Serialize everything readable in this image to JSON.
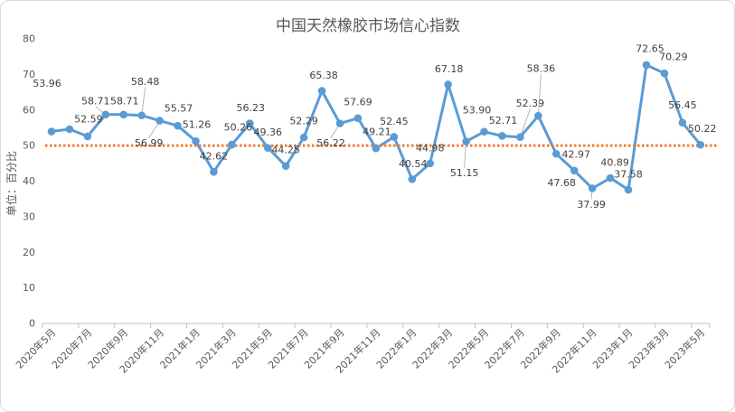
{
  "chart_data": {
    "type": "line",
    "title": "中国天然橡胶市场信心指数",
    "ylabel": "单位：百分比",
    "ylim": [
      0,
      80
    ],
    "y_ticks": [
      0,
      10,
      20,
      30,
      40,
      50,
      60,
      70,
      80
    ],
    "x_tick_labels": [
      "2020年5月",
      "2020年7月",
      "2020年9月",
      "2020年11月",
      "2021年1月",
      "2021年3月",
      "2021年5月",
      "2021年7月",
      "2021年9月",
      "2021年11月",
      "2022年1月",
      "2022年3月",
      "2022年5月",
      "2022年7月",
      "2022年9月",
      "2022年11月",
      "2023年1月",
      "2023年3月",
      "2023年5月"
    ],
    "series": [
      {
        "color": "#5B9BD5",
        "values": [
          53.96,
          54.6,
          52.59,
          58.71,
          58.71,
          58.48,
          56.99,
          55.57,
          51.26,
          42.62,
          50.26,
          56.23,
          49.36,
          44.25,
          52.29,
          65.38,
          56.22,
          57.69,
          49.21,
          52.45,
          40.54,
          44.98,
          67.18,
          51.15,
          53.9,
          52.71,
          52.39,
          58.36,
          47.68,
          42.97,
          37.99,
          40.89,
          37.58,
          72.65,
          70.29,
          56.45,
          50.22
        ],
        "data_labels": [
          "53.96",
          null,
          "52.59",
          "58.71",
          "58.71",
          "58.48",
          "56.99",
          "55.57",
          "51.26",
          "42.62",
          "50.26",
          "56.23",
          "49.36",
          "44.25",
          "52.29",
          "65.38",
          "56.22",
          "57.69",
          "49.21",
          "52.45",
          "40.54",
          "44.98",
          "67.18",
          "51.15",
          "53.90",
          "52.71",
          "52.39",
          "58.36",
          "47.68",
          "42.97",
          "37.99",
          "40.89",
          "37.58",
          "72.65",
          "70.29",
          "56.45",
          "50.22"
        ]
      }
    ],
    "reference_line": {
      "value": 50,
      "color": "#ED7D31"
    },
    "grid": false
  }
}
